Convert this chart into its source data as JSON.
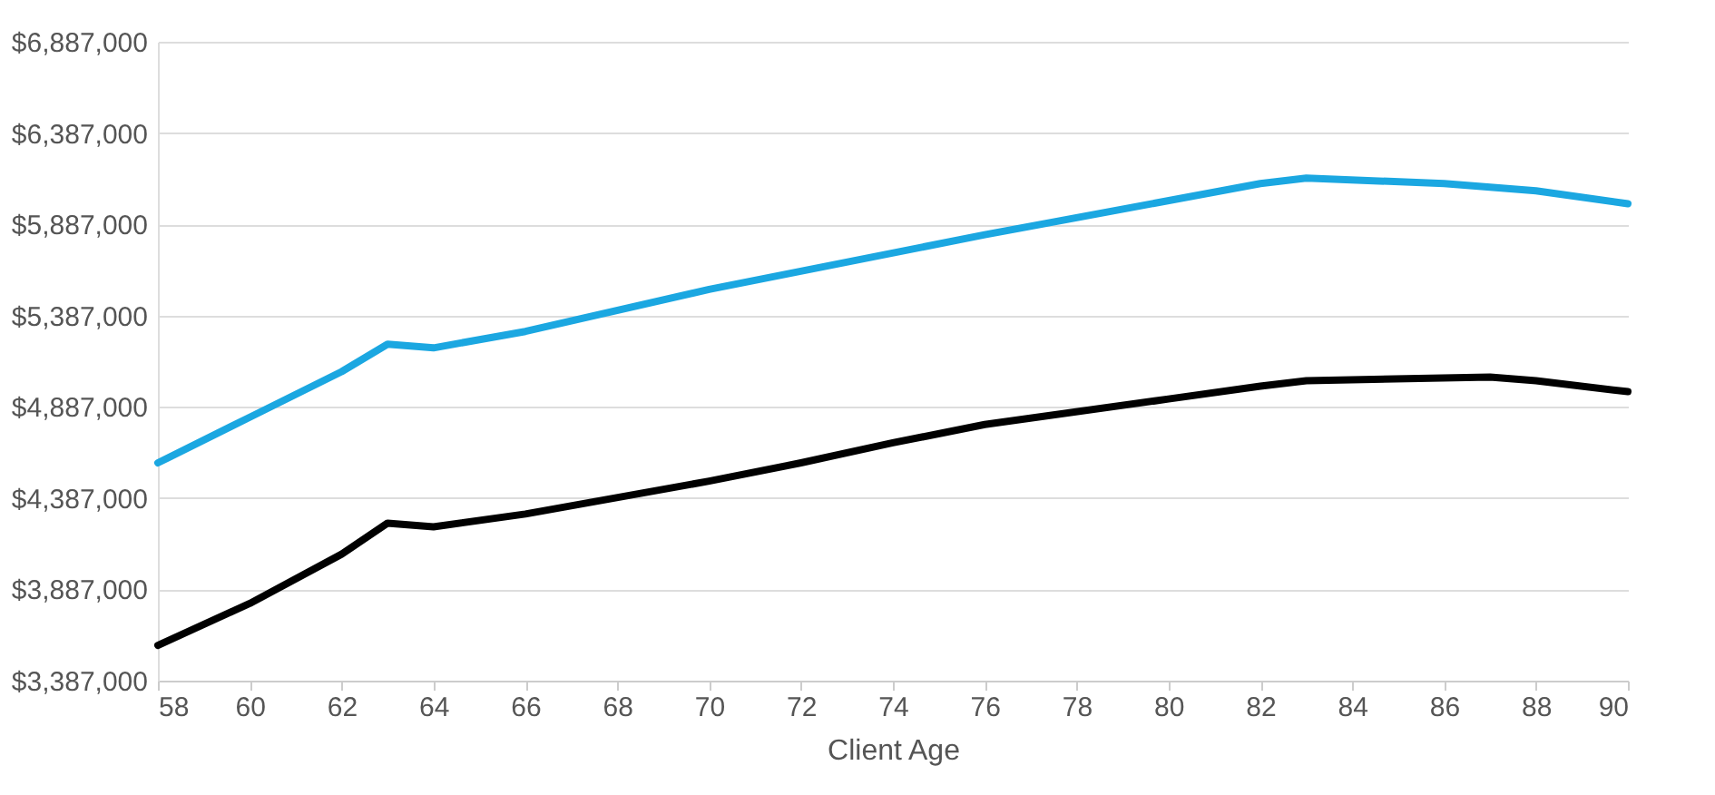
{
  "chart_data": {
    "type": "line",
    "xlabel": "Client Age",
    "series": [
      {
        "color": "#1ba7e1",
        "x": [
          58,
          60,
          62,
          63,
          64,
          66,
          70,
          76,
          82,
          83,
          86,
          88,
          90
        ],
        "values": [
          4580000,
          4830000,
          5080000,
          5230000,
          5210000,
          5300000,
          5530000,
          5830000,
          6110000,
          6140000,
          6110000,
          6070000,
          6000000
        ]
      },
      {
        "color": "#000000",
        "x": [
          58,
          60,
          62,
          63,
          64,
          66,
          70,
          72,
          74,
          76,
          80,
          82,
          83,
          87,
          88,
          90
        ],
        "values": [
          3580000,
          3810000,
          4080000,
          4250000,
          4230000,
          4300000,
          4480000,
          4580000,
          4690000,
          4790000,
          4930000,
          5000000,
          5030000,
          5050000,
          5030000,
          4970000
        ]
      }
    ],
    "xlim": [
      58,
      90
    ],
    "xticks": [
      58,
      60,
      62,
      64,
      66,
      68,
      70,
      72,
      74,
      76,
      78,
      80,
      82,
      84,
      86,
      88,
      90
    ],
    "ylim": [
      3387000,
      6887000
    ],
    "yticks": [
      {
        "value": 3387000,
        "label": "$3,387,000"
      },
      {
        "value": 3887000,
        "label": "$3,887,000"
      },
      {
        "value": 4387000,
        "label": "$4,387,000"
      },
      {
        "value": 4887000,
        "label": "$4,887,000"
      },
      {
        "value": 5387000,
        "label": "$5,387,000"
      },
      {
        "value": 5887000,
        "label": "$5,887,000"
      },
      {
        "value": 6387000,
        "label": "$6,387,000"
      },
      {
        "value": 6887000,
        "label": "$6,887,000"
      }
    ],
    "grid": "y",
    "marker": "none",
    "line_style": "solid"
  }
}
